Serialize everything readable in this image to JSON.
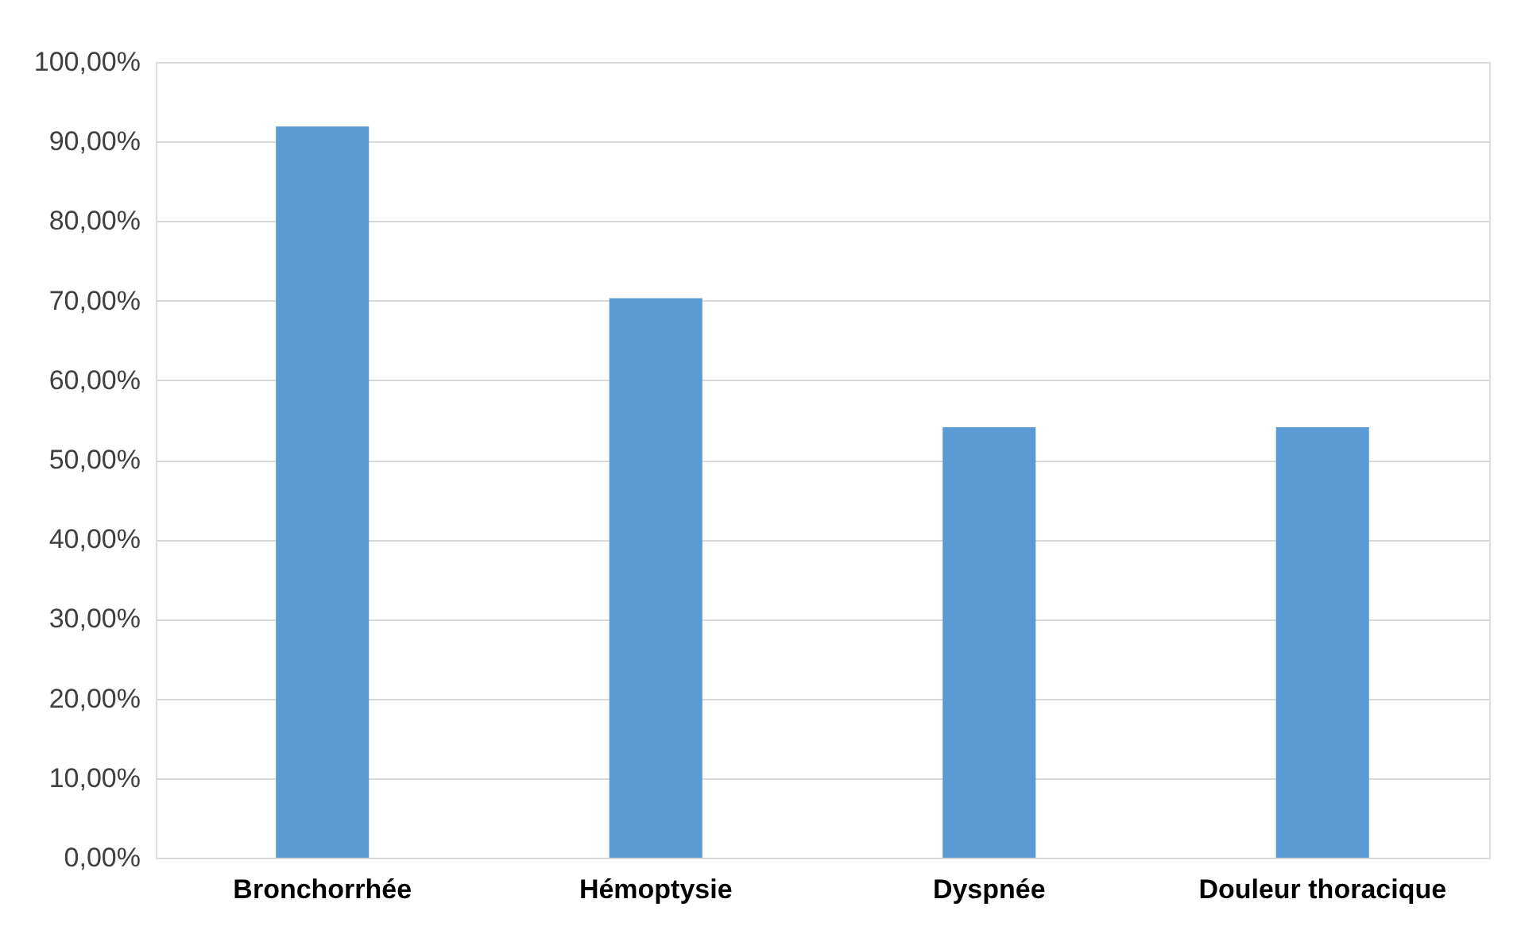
{
  "chart_data": {
    "type": "bar",
    "categories": [
      "Bronchorrhée",
      "Hémoptysie",
      "Dyspnée",
      "Douleur thoracique"
    ],
    "values": [
      91.9,
      70.3,
      54.1,
      54.1
    ],
    "color": "#5b9bd5",
    "ylim": [
      0,
      100
    ],
    "yticks": [
      {
        "value": 0,
        "label": "0,00%"
      },
      {
        "value": 10,
        "label": "10,00%"
      },
      {
        "value": 20,
        "label": "20,00%"
      },
      {
        "value": 30,
        "label": "30,00%"
      },
      {
        "value": 40,
        "label": "40,00%"
      },
      {
        "value": 50,
        "label": "50,00%"
      },
      {
        "value": 60,
        "label": "60,00%"
      },
      {
        "value": 70,
        "label": "70,00%"
      },
      {
        "value": 80,
        "label": "80,00%"
      },
      {
        "value": 90,
        "label": "90,00%"
      },
      {
        "value": 100,
        "label": "100,00%"
      }
    ],
    "grid": "y"
  }
}
